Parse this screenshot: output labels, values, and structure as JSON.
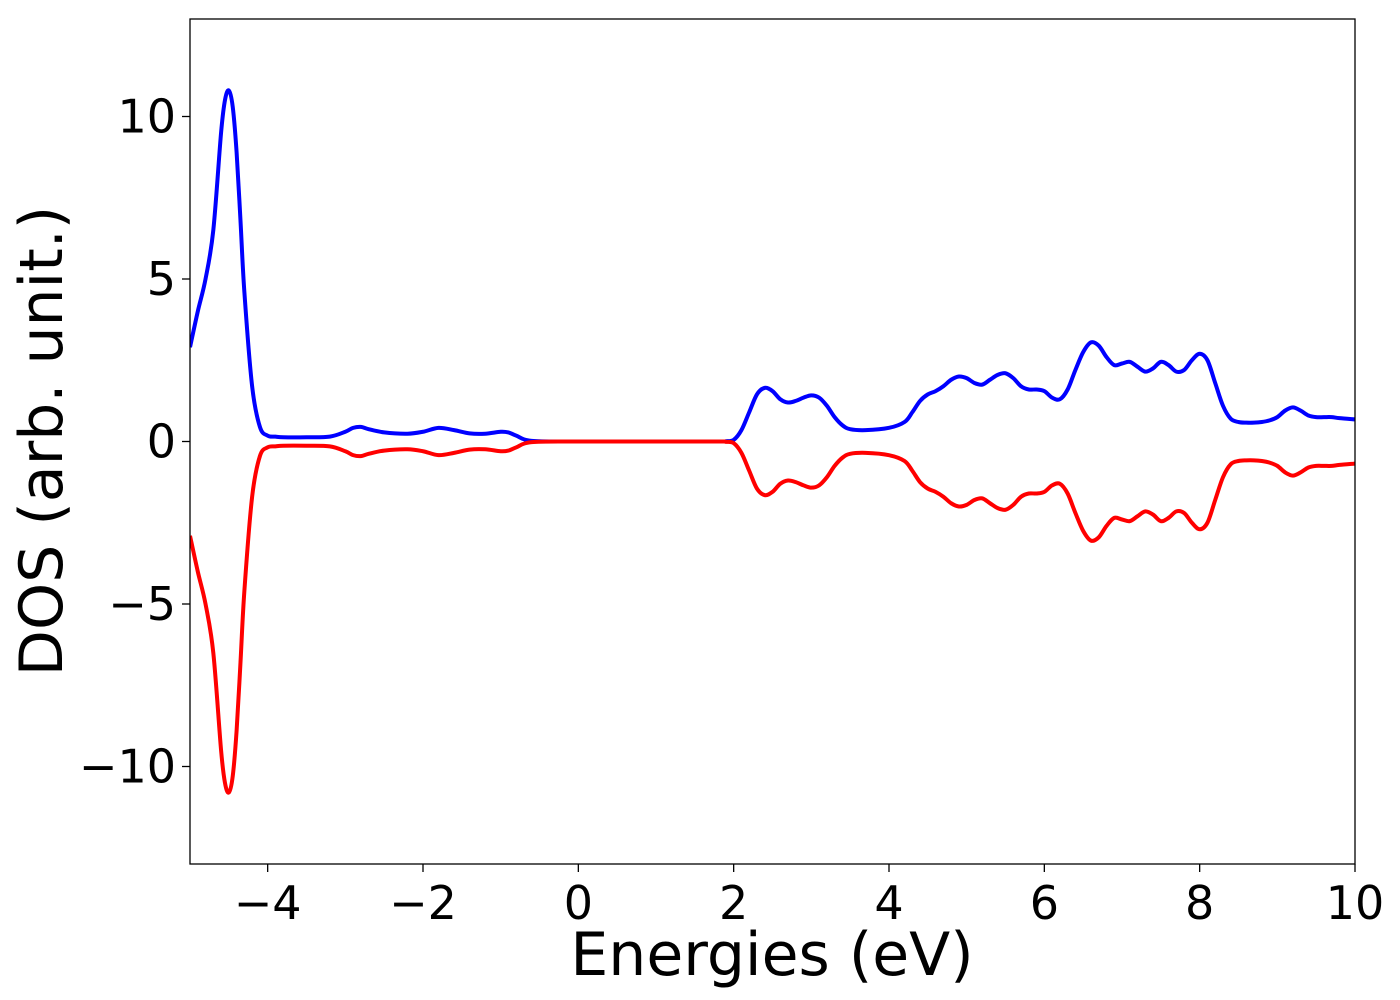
{
  "chart_data": {
    "type": "line",
    "title": "",
    "xlabel": "Energies (eV)",
    "ylabel": "DOS (arb. unit.)",
    "xlim": [
      -5,
      10
    ],
    "ylim": [
      -13,
      13
    ],
    "xticks": [
      -4,
      -2,
      0,
      2,
      4,
      6,
      8,
      10
    ],
    "xtick_labels": [
      "−4",
      "−2",
      "0",
      "2",
      "4",
      "6",
      "8",
      "10"
    ],
    "yticks": [
      -10,
      -5,
      0,
      5,
      10
    ],
    "ytick_labels": [
      "−10",
      "−5",
      "0",
      "5",
      "10"
    ],
    "grid": false,
    "legend": "none",
    "series": [
      {
        "color": "#0000ff",
        "x": [
          -5.0,
          -4.9,
          -4.8,
          -4.7,
          -4.6,
          -4.55,
          -4.5,
          -4.45,
          -4.4,
          -4.35,
          -4.3,
          -4.2,
          -4.1,
          -4.0,
          -3.9,
          -3.8,
          -3.5,
          -3.2,
          -3.0,
          -2.9,
          -2.8,
          -2.7,
          -2.5,
          -2.2,
          -2.0,
          -1.8,
          -1.6,
          -1.4,
          -1.2,
          -1.0,
          -0.9,
          -0.8,
          -0.6,
          0.0,
          1.0,
          1.8,
          1.9,
          2.0,
          2.1,
          2.2,
          2.3,
          2.4,
          2.5,
          2.6,
          2.7,
          2.8,
          2.9,
          3.0,
          3.1,
          3.2,
          3.3,
          3.4,
          3.5,
          3.7,
          4.0,
          4.2,
          4.3,
          4.4,
          4.5,
          4.6,
          4.7,
          4.8,
          4.9,
          5.0,
          5.1,
          5.2,
          5.3,
          5.4,
          5.5,
          5.6,
          5.7,
          5.8,
          5.9,
          6.0,
          6.1,
          6.2,
          6.3,
          6.4,
          6.5,
          6.6,
          6.7,
          6.8,
          6.9,
          7.0,
          7.1,
          7.2,
          7.3,
          7.4,
          7.5,
          7.6,
          7.7,
          7.8,
          7.9,
          8.0,
          8.1,
          8.2,
          8.3,
          8.4,
          8.5,
          8.6,
          8.7,
          8.8,
          8.9,
          9.0,
          9.1,
          9.2,
          9.3,
          9.4,
          9.5,
          9.6,
          9.7,
          9.8,
          10.0
        ],
        "values": [
          2.9,
          4.0,
          5.0,
          6.5,
          9.5,
          10.5,
          10.8,
          10.3,
          8.9,
          6.8,
          4.6,
          1.7,
          0.45,
          0.18,
          0.15,
          0.13,
          0.13,
          0.15,
          0.3,
          0.42,
          0.45,
          0.38,
          0.28,
          0.24,
          0.3,
          0.42,
          0.35,
          0.25,
          0.24,
          0.3,
          0.28,
          0.18,
          0.02,
          0.0,
          0.0,
          0.0,
          0.01,
          0.05,
          0.35,
          0.9,
          1.45,
          1.65,
          1.55,
          1.3,
          1.2,
          1.25,
          1.35,
          1.42,
          1.35,
          1.1,
          0.75,
          0.5,
          0.38,
          0.35,
          0.42,
          0.6,
          0.9,
          1.25,
          1.45,
          1.55,
          1.7,
          1.9,
          2.0,
          1.95,
          1.8,
          1.75,
          1.9,
          2.05,
          2.1,
          1.95,
          1.7,
          1.6,
          1.6,
          1.55,
          1.35,
          1.3,
          1.6,
          2.2,
          2.75,
          3.05,
          2.95,
          2.6,
          2.35,
          2.4,
          2.45,
          2.3,
          2.15,
          2.25,
          2.45,
          2.35,
          2.15,
          2.2,
          2.5,
          2.7,
          2.5,
          1.8,
          1.1,
          0.7,
          0.6,
          0.58,
          0.58,
          0.6,
          0.65,
          0.75,
          0.95,
          1.05,
          0.95,
          0.8,
          0.75,
          0.75,
          0.75,
          0.72,
          0.68
        ]
      },
      {
        "color": "#ff0000",
        "x": [
          -5.0,
          -4.9,
          -4.8,
          -4.7,
          -4.6,
          -4.55,
          -4.5,
          -4.45,
          -4.4,
          -4.35,
          -4.3,
          -4.2,
          -4.1,
          -4.0,
          -3.9,
          -3.8,
          -3.5,
          -3.2,
          -3.0,
          -2.9,
          -2.8,
          -2.7,
          -2.5,
          -2.2,
          -2.0,
          -1.8,
          -1.6,
          -1.4,
          -1.2,
          -1.0,
          -0.9,
          -0.8,
          -0.6,
          0.0,
          1.0,
          1.8,
          1.9,
          2.0,
          2.1,
          2.2,
          2.3,
          2.4,
          2.5,
          2.6,
          2.7,
          2.8,
          2.9,
          3.0,
          3.1,
          3.2,
          3.3,
          3.4,
          3.5,
          3.7,
          4.0,
          4.2,
          4.3,
          4.4,
          4.5,
          4.6,
          4.7,
          4.8,
          4.9,
          5.0,
          5.1,
          5.2,
          5.3,
          5.4,
          5.5,
          5.6,
          5.7,
          5.8,
          5.9,
          6.0,
          6.1,
          6.2,
          6.3,
          6.4,
          6.5,
          6.6,
          6.7,
          6.8,
          6.9,
          7.0,
          7.1,
          7.2,
          7.3,
          7.4,
          7.5,
          7.6,
          7.7,
          7.8,
          7.9,
          8.0,
          8.1,
          8.2,
          8.3,
          8.4,
          8.5,
          8.6,
          8.7,
          8.8,
          8.9,
          9.0,
          9.1,
          9.2,
          9.3,
          9.4,
          9.5,
          9.6,
          9.7,
          9.8,
          10.0
        ],
        "values": [
          -2.9,
          -4.0,
          -5.0,
          -6.5,
          -9.5,
          -10.5,
          -10.8,
          -10.3,
          -8.9,
          -6.8,
          -4.6,
          -1.7,
          -0.45,
          -0.18,
          -0.15,
          -0.13,
          -0.13,
          -0.15,
          -0.3,
          -0.42,
          -0.45,
          -0.38,
          -0.28,
          -0.24,
          -0.3,
          -0.42,
          -0.35,
          -0.25,
          -0.24,
          -0.3,
          -0.28,
          -0.18,
          -0.02,
          0.0,
          0.0,
          0.0,
          -0.01,
          -0.05,
          -0.35,
          -0.9,
          -1.45,
          -1.65,
          -1.55,
          -1.3,
          -1.2,
          -1.25,
          -1.35,
          -1.42,
          -1.35,
          -1.1,
          -0.75,
          -0.5,
          -0.38,
          -0.35,
          -0.42,
          -0.6,
          -0.9,
          -1.25,
          -1.45,
          -1.55,
          -1.7,
          -1.9,
          -2.0,
          -1.95,
          -1.8,
          -1.75,
          -1.9,
          -2.05,
          -2.1,
          -1.95,
          -1.7,
          -1.6,
          -1.6,
          -1.55,
          -1.35,
          -1.3,
          -1.6,
          -2.2,
          -2.75,
          -3.05,
          -2.95,
          -2.6,
          -2.35,
          -2.4,
          -2.45,
          -2.3,
          -2.15,
          -2.25,
          -2.45,
          -2.35,
          -2.15,
          -2.2,
          -2.5,
          -2.7,
          -2.5,
          -1.8,
          -1.1,
          -0.7,
          -0.6,
          -0.58,
          -0.58,
          -0.6,
          -0.65,
          -0.75,
          -0.95,
          -1.05,
          -0.95,
          -0.8,
          -0.75,
          -0.75,
          -0.75,
          -0.72,
          -0.68
        ]
      }
    ]
  }
}
